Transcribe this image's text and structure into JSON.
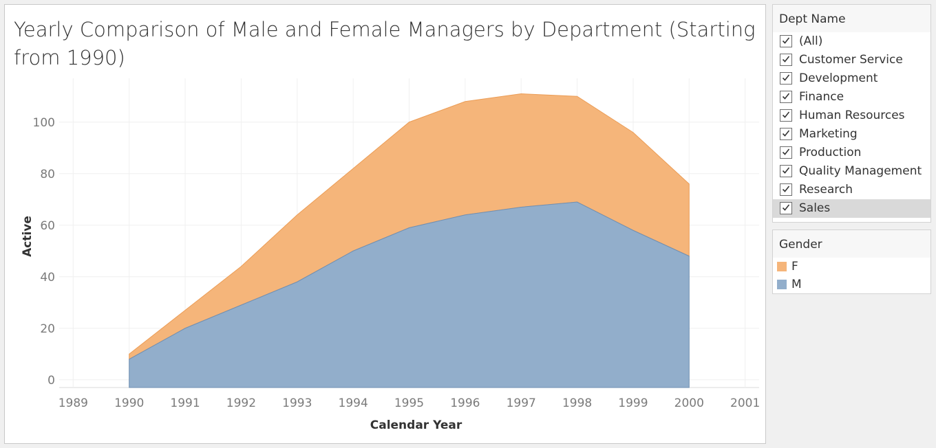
{
  "colors": {
    "female": "#f5b57a",
    "male": "#92aecb",
    "female_line": "#eb9c55",
    "male_line": "#6f8fb3"
  },
  "chart_data": {
    "type": "area",
    "stacked": true,
    "title": "Yearly Comparison of Male and Female Managers by Department (Starting from 1990)",
    "xlabel": "Calendar Year",
    "ylabel": "Active",
    "x_ticks": [
      "1989",
      "1990",
      "1991",
      "1992",
      "1993",
      "1994",
      "1995",
      "1996",
      "1997",
      "1998",
      "1999",
      "2000",
      "2001"
    ],
    "y_ticks": [
      "0",
      "20",
      "40",
      "60",
      "80",
      "100"
    ],
    "xlim": [
      1988.75,
      2001.25
    ],
    "ylim": [
      -3,
      117
    ],
    "grid": true,
    "x": [
      1990,
      1991,
      1992,
      1993,
      1994,
      1995,
      1996,
      1997,
      1998,
      1999,
      2000
    ],
    "series": [
      {
        "name": "M",
        "values": [
          8,
          20,
          29,
          38,
          50,
          59,
          64,
          67,
          69,
          58,
          48
        ]
      },
      {
        "name": "F",
        "values": [
          2,
          7,
          15,
          26,
          32,
          41,
          44,
          44,
          41,
          38,
          28
        ]
      }
    ]
  },
  "dept_filter": {
    "title": "Dept Name",
    "items": [
      {
        "label": "(All)",
        "checked": true
      },
      {
        "label": "Customer Service",
        "checked": true
      },
      {
        "label": "Development",
        "checked": true
      },
      {
        "label": "Finance",
        "checked": true
      },
      {
        "label": "Human Resources",
        "checked": true
      },
      {
        "label": "Marketing",
        "checked": true
      },
      {
        "label": "Production",
        "checked": true
      },
      {
        "label": "Quality Management",
        "checked": true
      },
      {
        "label": "Research",
        "checked": true
      },
      {
        "label": "Sales",
        "checked": true,
        "selected": true
      }
    ]
  },
  "gender_legend": {
    "title": "Gender",
    "items": [
      {
        "label": "F",
        "color": "#f5b57a"
      },
      {
        "label": "M",
        "color": "#92aecb"
      }
    ]
  }
}
